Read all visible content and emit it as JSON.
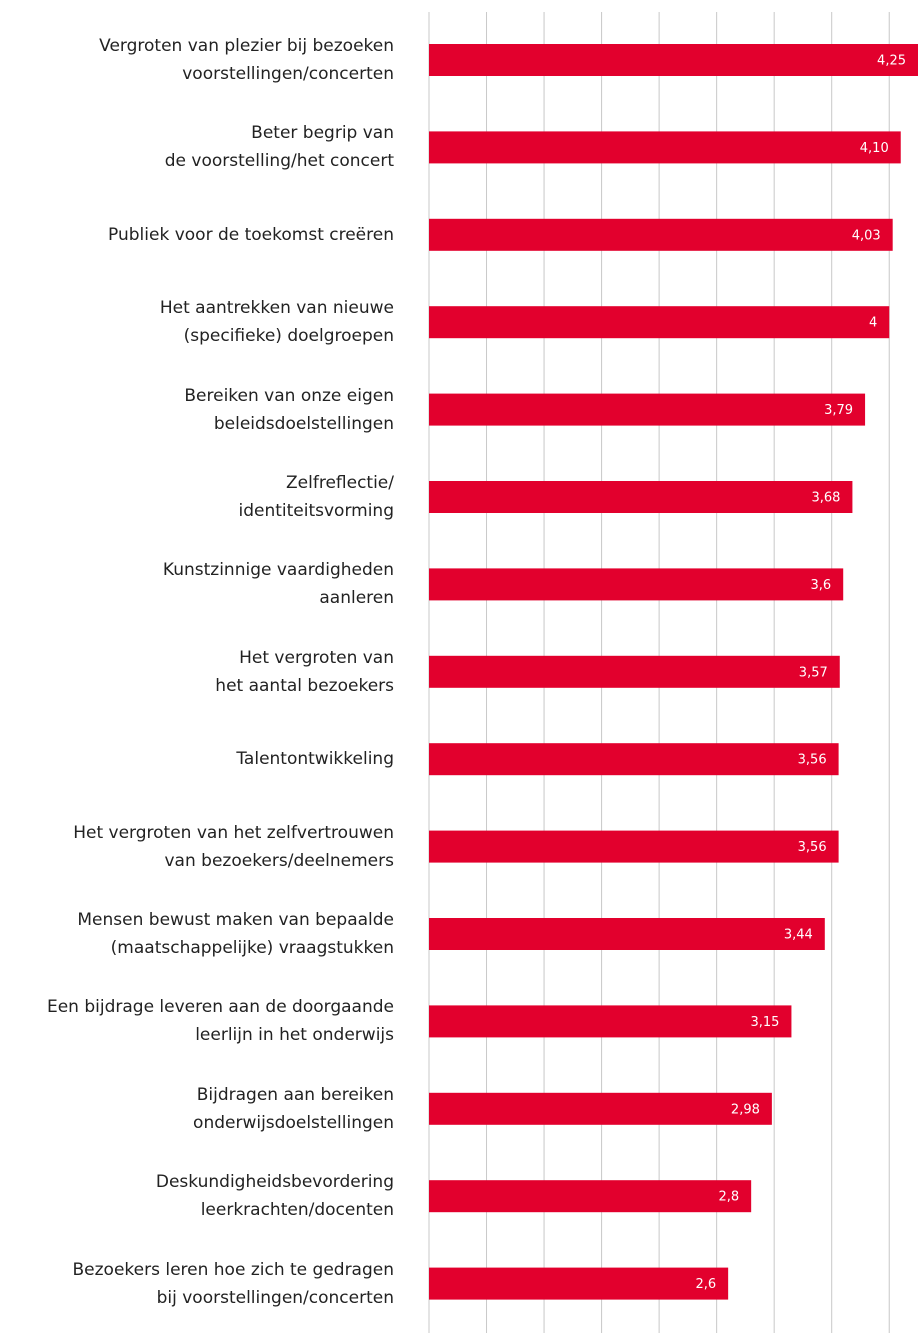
{
  "chart_data": {
    "type": "bar",
    "orientation": "horizontal",
    "categories": [
      "Vergroten van plezier bij bezoeken\nvoorstellingen/concerten",
      "Beter begrip van\nde voorstelling/het concert",
      "Publiek voor de toekomst creëren",
      "Het aantrekken van nieuwe\n(specifieke) doelgroepen",
      "Bereiken van onze eigen\nbeleidsdoelstellingen",
      "Zelfreflectie/\nidentiteitsvorming",
      "Kunstzinnige vaardigheden\naanleren",
      "Het vergroten van\nhet aantal bezoekers",
      "Talentontwikkeling",
      "Het vergroten van het zelfvertrouwen\nvan bezoekers/deelnemers",
      "Mensen bewust maken van bepaalde\n(maatschappelijke) vraagstukken",
      "Een bijdrage leveren aan de doorgaande\nleerlijn in het onderwijs",
      "Bijdragen aan bereiken\nonderwijsdoelstellingen",
      "Deskundigheidsbevordering\nleerkrachten/docenten",
      "Bezoekers leren hoe zich te gedragen\nbij voorstellingen/concerten"
    ],
    "values": [
      4.25,
      4.1,
      4.03,
      4,
      3.79,
      3.68,
      3.6,
      3.57,
      3.56,
      3.56,
      3.44,
      3.15,
      2.98,
      2.8,
      2.6
    ],
    "value_labels": [
      "4,25",
      "4,10",
      "4,03",
      "4",
      "3,79",
      "3,68",
      "3,6",
      "3,57",
      "3,56",
      "3,56",
      "3,44",
      "3,15",
      "2,98",
      "2,8",
      "2,6"
    ],
    "color": "#e2002d",
    "xlim": [
      0,
      4.25
    ],
    "xticks": [
      0,
      0.5,
      1,
      1.5,
      2,
      2.5,
      3,
      3.5,
      4
    ],
    "grid": true
  }
}
